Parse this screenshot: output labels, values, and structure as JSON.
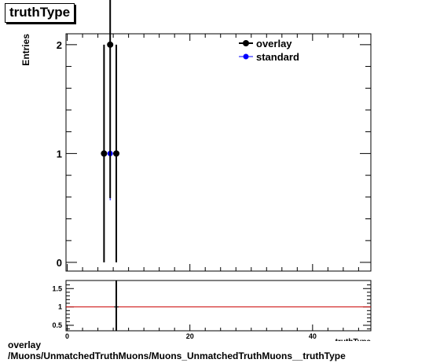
{
  "title": "truthType",
  "footer": {
    "line1": "overlay",
    "line2": "/Muons/UnmatchedTruthMuons/Muons_UnmatchedTruthMuons__truthType"
  },
  "colors": {
    "overlay": "#000000",
    "standard": "#0000ff",
    "ratio_line": "#cc0000"
  },
  "chart_data": [
    {
      "type": "scatter",
      "title": "truthType",
      "xlabel": "",
      "ylabel": "Entries",
      "xlim": [
        -0.2,
        49.5
      ],
      "ylim": [
        -0.08,
        2.1
      ],
      "yticks": [
        0,
        1,
        2
      ],
      "legend": {
        "placement": "top-right",
        "entries": [
          "overlay",
          "standard"
        ]
      },
      "series": [
        {
          "name": "overlay",
          "color": "#000000",
          "points": [
            {
              "x": 6,
              "y": 1,
              "err": 1
            },
            {
              "x": 7,
              "y": 2,
              "err": 1.41
            },
            {
              "x": 8,
              "y": 1,
              "err": 1
            }
          ]
        },
        {
          "name": "standard",
          "color": "#0000ff",
          "points": [
            {
              "x": 7,
              "y": 1,
              "err_low": 0.43,
              "err_high": 0
            }
          ]
        }
      ]
    },
    {
      "type": "scatter",
      "xlabel": "truthType",
      "ylabel": "",
      "xlim": [
        -0.2,
        49.5
      ],
      "ylim": [
        0.35,
        1.72
      ],
      "yticks": [
        0.5,
        1,
        1.5
      ],
      "xticks": [
        0,
        20,
        40
      ],
      "reference_line": 1,
      "points": [
        {
          "x": 8,
          "y": 1.0,
          "err": 0.72
        }
      ]
    }
  ]
}
